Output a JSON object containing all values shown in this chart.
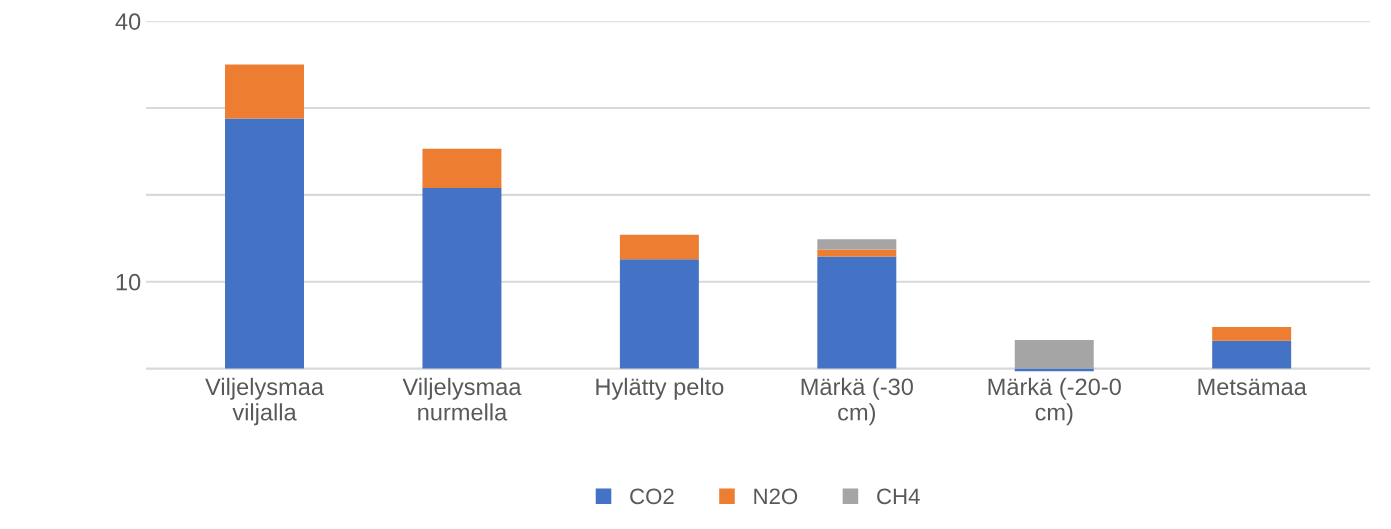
{
  "chart_data": {
    "type": "bar",
    "stacked": true,
    "categories": [
      "Viljelysmaa\nviljalla",
      "Viljelysmaa\nnurmella",
      "Hylätty pelto",
      "Märkä (-30\ncm)",
      "Märkä (-20-0\ncm)",
      "Metsämaa"
    ],
    "series": [
      {
        "name": "CO2",
        "color": "#4472c4",
        "values": [
          28.8,
          20.8,
          12.6,
          12.9,
          -0.3,
          3.2
        ]
      },
      {
        "name": "N2O",
        "color": "#ed7d31",
        "values": [
          6.2,
          4.5,
          2.8,
          0.8,
          0,
          1.6
        ]
      },
      {
        "name": "CH4",
        "color": "#a5a5a5",
        "values": [
          0,
          0,
          0,
          1.2,
          3.3,
          0
        ]
      }
    ],
    "ylim": [
      -0.5,
      40
    ],
    "yticks": [
      {
        "value": 0,
        "label": null
      },
      10,
      {
        "value": 20,
        "label": null
      },
      {
        "value": 30,
        "label": null
      },
      40
    ],
    "grid": "y",
    "legend": "bottom"
  }
}
